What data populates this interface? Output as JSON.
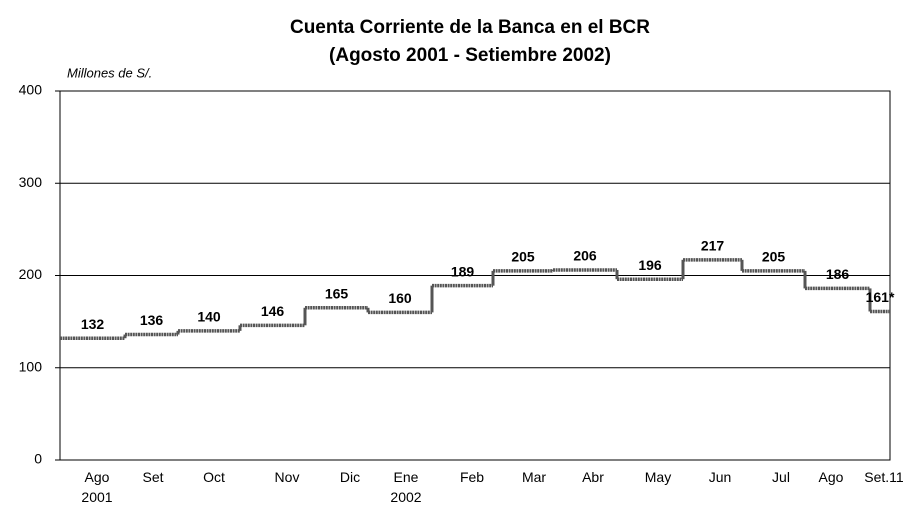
{
  "chart_data": {
    "type": "step",
    "title": "Cuenta Corriente de la Banca en el BCR",
    "subtitle": "(Agosto 2001 - Setiembre 2002)",
    "y_label": "Millones de S/.",
    "categories": [
      "Ago 2001",
      "Set",
      "Oct",
      "Nov",
      "Dic",
      "Ene 2002",
      "Feb",
      "Mar",
      "Abr",
      "May",
      "Jun",
      "Jul",
      "Ago",
      "Set.11"
    ],
    "values": [
      132,
      136,
      140,
      146,
      165,
      160,
      189,
      205,
      206,
      196,
      217,
      205,
      186,
      161
    ],
    "value_labels": [
      "132",
      "136",
      "140",
      "146",
      "165",
      "160",
      "189",
      "205",
      "206",
      "196",
      "217",
      "205",
      "186",
      "161*"
    ],
    "color": "#555555",
    "ylim": [
      0,
      400
    ],
    "yticks": [
      0,
      100,
      200,
      300,
      400
    ],
    "grid": true
  }
}
